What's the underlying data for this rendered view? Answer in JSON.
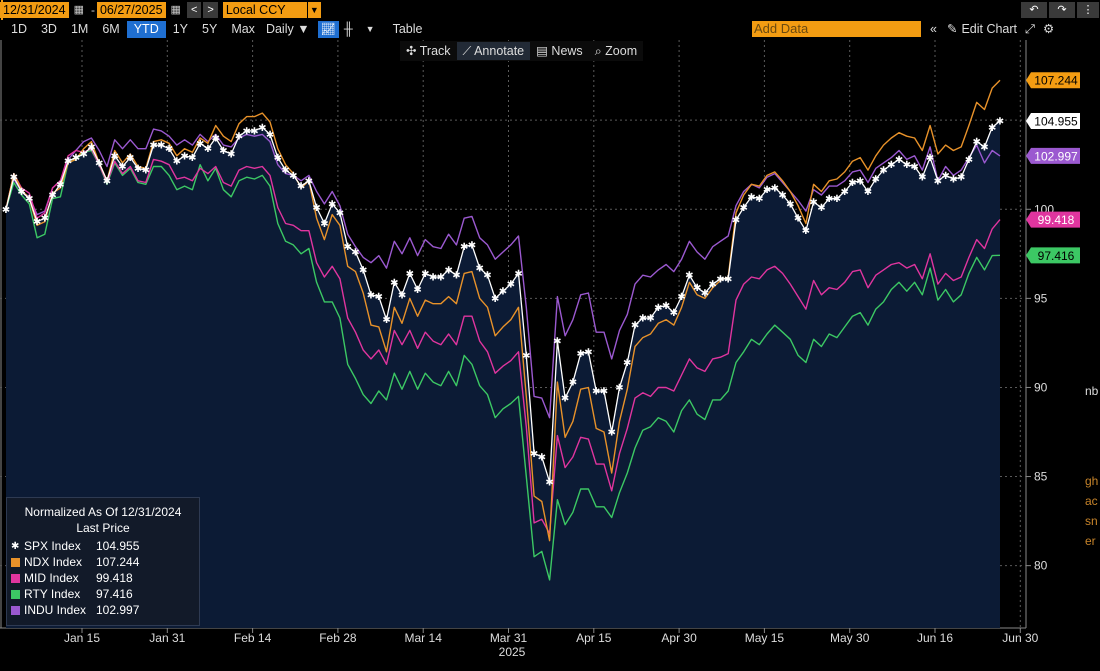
{
  "toolbar": {
    "start_date": "12/31/2024",
    "dash": "-",
    "end_date": "06/27/2025",
    "currency": "Local CCY",
    "ranges": [
      "1D",
      "3D",
      "1M",
      "6M",
      "YTD",
      "1Y",
      "5Y",
      "Max"
    ],
    "active_range": "YTD",
    "frequency": "Daily ▼",
    "table_label": "Table",
    "add_data_placeholder": "Add Data",
    "edit_chart_label": "Edit Chart"
  },
  "subtoolbar": {
    "track": "Track",
    "annotate": "Annotate",
    "news": "News",
    "zoom": "Zoom"
  },
  "legend": {
    "title": "Normalized As Of 12/31/2024",
    "subtitle": "Last Price",
    "items": [
      {
        "name": "SPX Index",
        "value": "104.955",
        "color": "#ffffff"
      },
      {
        "name": "NDX Index",
        "value": "107.244",
        "color": "#e8922a"
      },
      {
        "name": "MID Index",
        "value": "99.418",
        "color": "#e0359f"
      },
      {
        "name": "RTY Index",
        "value": "97.416",
        "color": "#3cc864"
      },
      {
        "name": "INDU Index",
        "value": "102.997",
        "color": "#9b59d0"
      }
    ]
  },
  "right_clipped_text": [
    "gh",
    "ac",
    "sn",
    "er",
    "nb"
  ],
  "chart_data": {
    "type": "line",
    "x_ticks": [
      "Jan 15",
      "Jan 31",
      "Feb 14",
      "Feb 28",
      "Mar 14",
      "Mar 31",
      "Apr 15",
      "Apr 30",
      "May 15",
      "May 30",
      "Jun 16",
      "Jun 30"
    ],
    "x_year": "2025",
    "y_ticks": [
      "80",
      "85",
      "90",
      "95",
      "100",
      "105"
    ],
    "ylim": [
      76.5,
      109.5
    ],
    "grid": true,
    "last_price_labels": [
      {
        "text": "107.244",
        "color": "#f39c12",
        "textcolor": "#000000"
      },
      {
        "text": "104.955",
        "color": "#ffffff",
        "textcolor": "#000000"
      },
      {
        "text": "102.997",
        "color": "#9b59d0",
        "textcolor": "#ffffff"
      },
      {
        "text": "99.418",
        "color": "#e0359f",
        "textcolor": "#ffffff"
      },
      {
        "text": "97.416",
        "color": "#3cc864",
        "textcolor": "#000000"
      }
    ],
    "series": [
      {
        "name": "SPX Index",
        "color": "#ffffff",
        "fill": "#0c1b35",
        "values": [
          100,
          101.8,
          101,
          100.6,
          99.3,
          99.5,
          100.8,
          101.4,
          102.7,
          102.9,
          103.1,
          103.5,
          102.6,
          101.6,
          103,
          102.4,
          102.9,
          102.3,
          102.2,
          103.6,
          103.6,
          103.4,
          102.7,
          103,
          102.9,
          103.7,
          103.4,
          104,
          103.3,
          103.1,
          104.1,
          104.4,
          104.4,
          104.6,
          104.2,
          102.9,
          102.2,
          101.9,
          101.3,
          101.6,
          100.1,
          99.2,
          100.3,
          99.8,
          97.9,
          97.6,
          96.6,
          95.2,
          95.1,
          93.8,
          95.9,
          95.2,
          96.4,
          95.5,
          96.4,
          96.2,
          96.2,
          96.6,
          96.3,
          97.9,
          98,
          96.7,
          96.3,
          95,
          95.4,
          95.8,
          96.4,
          91.8,
          86.3,
          86.1,
          84.7,
          92.6,
          89.4,
          90.3,
          91.9,
          92,
          89.8,
          89.8,
          87.5,
          90,
          91.4,
          93.5,
          93.9,
          93.9,
          94.5,
          94.6,
          94.2,
          95.1,
          96.3,
          95.6,
          95.3,
          95.8,
          96.1,
          96.1,
          99.4,
          100.1,
          100.7,
          100.6,
          101.1,
          101.2,
          100.8,
          100.3,
          99.5,
          98.8,
          100.4,
          100.1,
          100.6,
          100.6,
          101,
          101.5,
          101.6,
          101,
          101.7,
          102.2,
          102.5,
          102.8,
          102.5,
          102.4,
          101.8,
          102.9,
          101.6,
          101.9,
          101.7,
          101.8,
          102.8,
          103.8,
          103.5,
          104.6,
          104.955
        ]
      },
      {
        "name": "NDX Index",
        "color": "#e8922a",
        "fill": null,
        "values": [
          100,
          102,
          101.1,
          100.6,
          99.1,
          99.3,
          100.9,
          101.2,
          102.6,
          102.8,
          103.4,
          103.8,
          102.6,
          101.6,
          103.3,
          102.6,
          103.1,
          102.4,
          102.3,
          103.8,
          103.9,
          103.7,
          103,
          103.4,
          103.2,
          104,
          103.7,
          104.7,
          104.1,
          103.8,
          104.8,
          105.2,
          105.2,
          105.4,
          104.9,
          103.4,
          102.5,
          102,
          101.2,
          101.6,
          99.5,
          98.3,
          99.7,
          99.1,
          96.8,
          96.5,
          95.3,
          93.5,
          93.4,
          92,
          94.5,
          93.6,
          95,
          94,
          94.9,
          94.7,
          94.7,
          95.1,
          94.7,
          96.4,
          96.5,
          95,
          94.5,
          92.9,
          93.4,
          93.8,
          94.5,
          89.5,
          83.9,
          83.6,
          81.4,
          90.3,
          87.2,
          88.1,
          89.9,
          90,
          87.7,
          87.5,
          85.2,
          88.1,
          89.9,
          92.3,
          92.8,
          93,
          93.6,
          93.8,
          93.5,
          94.5,
          95.9,
          95.2,
          95,
          95.6,
          96,
          96.2,
          99.8,
          100.8,
          101.4,
          101.3,
          101.9,
          102.1,
          101.6,
          101,
          100.2,
          99.2,
          101.4,
          101,
          101.6,
          101.7,
          102.1,
          102.7,
          102.9,
          102.2,
          103,
          103.6,
          104,
          104.3,
          104.1,
          104,
          103.3,
          104.7,
          103.1,
          103.6,
          103.3,
          103.5,
          104.7,
          106,
          105.6,
          106.8,
          107.244
        ]
      },
      {
        "name": "MID Index",
        "color": "#e0359f",
        "fill": null,
        "values": [
          100,
          102,
          101.2,
          100.9,
          99.5,
          99.8,
          101.2,
          101.6,
          103,
          103.3,
          103.2,
          103.4,
          102.5,
          101.5,
          102.7,
          102,
          102.4,
          101.6,
          101.5,
          102.8,
          102.7,
          102.5,
          101.7,
          101.8,
          101.6,
          102.3,
          102,
          102.4,
          101.5,
          101.3,
          102.2,
          102.4,
          102.3,
          102.4,
          101.9,
          100.1,
          99.2,
          99.1,
          98.8,
          98.8,
          97,
          96.2,
          96.8,
          96.1,
          93.9,
          93.1,
          92.1,
          91.6,
          92.1,
          91.3,
          93.2,
          92.4,
          93.2,
          92.2,
          93.1,
          92.6,
          92.4,
          93,
          92.4,
          94,
          94,
          92.6,
          92,
          90.8,
          91.2,
          91.5,
          92,
          87.8,
          82.4,
          82.6,
          81.8,
          87.3,
          85.5,
          86.1,
          87.2,
          87.1,
          85.7,
          85.7,
          84.2,
          86.3,
          87.7,
          89.4,
          89.7,
          89.5,
          90,
          90,
          89.8,
          90.7,
          91.6,
          91.1,
          90.9,
          91.6,
          91.7,
          91.9,
          94.9,
          95.8,
          96.2,
          96.1,
          96.6,
          96.8,
          96.4,
          95.8,
          95.1,
          94.4,
          96,
          95.2,
          95.6,
          95.5,
          95.9,
          96.5,
          96.6,
          95.6,
          96.3,
          96.6,
          96.9,
          97,
          96.7,
          96.9,
          96.1,
          97.5,
          95.8,
          96.4,
          96,
          96.2,
          97.3,
          98.3,
          97.8,
          98.9,
          99.418
        ]
      },
      {
        "name": "RTY Index",
        "color": "#3cc864",
        "fill": null,
        "values": [
          100,
          101.5,
          100.8,
          100.3,
          98.4,
          98.6,
          100.6,
          100.7,
          102.6,
          102.8,
          103.2,
          103.3,
          102.5,
          101.4,
          102.6,
          101.9,
          102.3,
          101.5,
          101.4,
          102.4,
          102.4,
          101.9,
          101.1,
          101.3,
          101.1,
          102.5,
          101.6,
          102.3,
          101.1,
          100.7,
          101.6,
          101.8,
          101.7,
          101.9,
          101.3,
          99.2,
          98.2,
          98,
          97.5,
          97.8,
          95.9,
          94.8,
          94.8,
          93.9,
          91.3,
          90.5,
          89.6,
          89.1,
          89.8,
          89.3,
          90.8,
          89.9,
          90.9,
          89.9,
          90.8,
          90.3,
          90.1,
          90.9,
          90.1,
          91.8,
          91.3,
          90.1,
          89.6,
          88.3,
          88.8,
          89.1,
          89.5,
          85,
          80.5,
          80.8,
          79.2,
          83.7,
          82.3,
          83,
          84.3,
          84.3,
          83.3,
          83.3,
          82.7,
          84.1,
          85.2,
          86.6,
          87.6,
          87.8,
          88.3,
          88.1,
          87.5,
          88.7,
          89.3,
          88.5,
          88.2,
          89.3,
          89.3,
          89.8,
          91.4,
          92,
          92.7,
          92.4,
          93,
          93.5,
          93.1,
          92.7,
          91.8,
          91.4,
          92.7,
          92.3,
          93,
          92.8,
          93.4,
          94,
          94.2,
          93.5,
          94.4,
          94.8,
          95.5,
          95.9,
          95.4,
          95.9,
          95.2,
          96.7,
          94.9,
          95.5,
          94.8,
          95.2,
          96.4,
          97.3,
          96.6,
          97.4,
          97.416
        ]
      },
      {
        "name": "INDU Index",
        "color": "#9b59d0",
        "fill": null,
        "values": [
          100,
          101.7,
          101,
          100.7,
          99.7,
          99.9,
          101.2,
          101.6,
          102.8,
          103.3,
          103.8,
          104,
          103.3,
          102.4,
          103.9,
          103.4,
          103.9,
          103.4,
          103.4,
          104.5,
          104.4,
          104.1,
          103.6,
          103.9,
          103.6,
          104.2,
          103.8,
          104.2,
          103.6,
          103.5,
          104,
          104.2,
          104.1,
          104.2,
          103.8,
          102.5,
          102,
          101.9,
          101.6,
          101.9,
          101,
          100.3,
          101,
          100.2,
          98.6,
          97.9,
          97.3,
          97,
          97.4,
          96.7,
          98.2,
          97.5,
          98.4,
          97.4,
          98.3,
          97.9,
          97.8,
          98.6,
          98,
          99.5,
          99.6,
          98.4,
          98,
          97.2,
          97.6,
          98,
          98.5,
          94.5,
          89.5,
          89.4,
          88.3,
          95.1,
          92.9,
          93.8,
          95.2,
          95.3,
          93.1,
          93.1,
          91.6,
          93.2,
          94.1,
          95.8,
          96.3,
          96.2,
          96.6,
          96.9,
          96.5,
          97.2,
          98.2,
          97.6,
          97.2,
          97.9,
          98.2,
          98.5,
          100.2,
          101,
          101.4,
          101.2,
          101.8,
          102,
          101.5,
          101,
          100.5,
          99.9,
          101.1,
          100.8,
          101.3,
          101.3,
          101.6,
          102.1,
          102.2,
          101.5,
          102.3,
          102.6,
          102.9,
          103.3,
          102.8,
          103,
          102.2,
          103.5,
          101.6,
          102.4,
          101.9,
          102.2,
          102.9,
          103.6,
          102.6,
          103.3,
          102.997
        ]
      }
    ]
  }
}
